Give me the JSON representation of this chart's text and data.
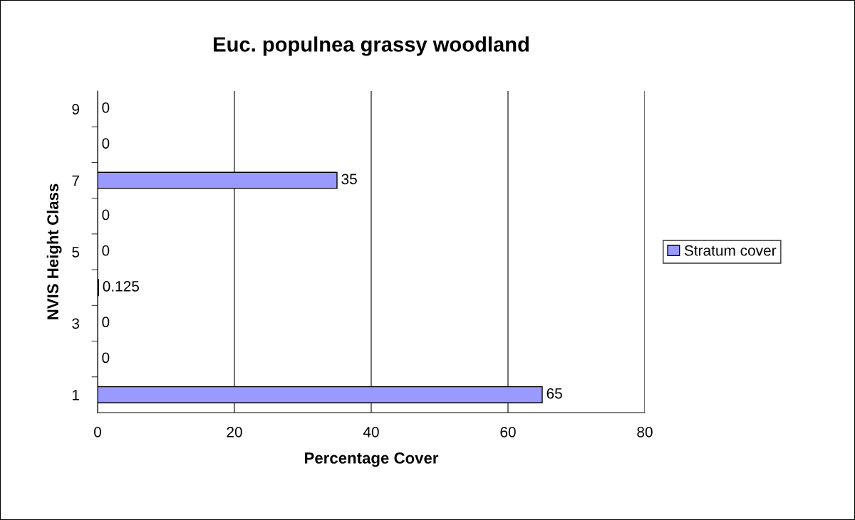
{
  "chart_data": {
    "type": "bar",
    "orientation": "horizontal",
    "title": "Euc. populnea grassy woodland",
    "xlabel": "Percentage Cover",
    "ylabel": "NVIS Height Class",
    "categories": [
      "9",
      null,
      "7",
      null,
      "5",
      null,
      "3",
      null,
      "1"
    ],
    "series": [
      {
        "name": "Stratum cover",
        "color": "#9999ff",
        "values": [
          0,
          0,
          35,
          0,
          0,
          0.125,
          0,
          0,
          65
        ]
      }
    ],
    "xlim": [
      0,
      80
    ],
    "xticks": [
      0,
      20,
      40,
      60,
      80
    ],
    "grid": "x",
    "legend": "right",
    "data_labels": true
  }
}
